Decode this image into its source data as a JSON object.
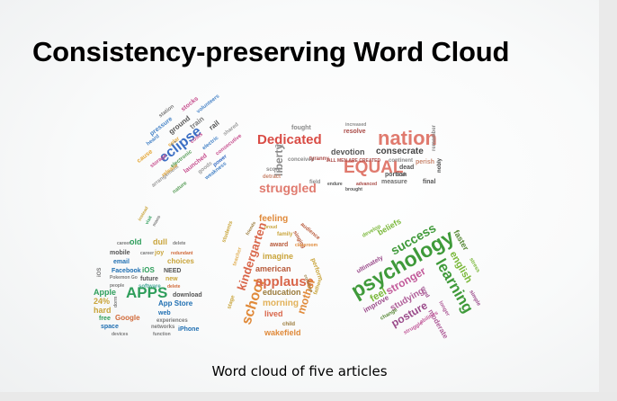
{
  "slide": {
    "title": "Consistency-preserving Word Cloud",
    "caption": "Word cloud of five articles"
  },
  "clouds": [
    {
      "id": "cloud-eclipse",
      "words": [
        "pressure",
        "eclipse",
        "cause",
        "arrangement",
        "ground",
        "train",
        "stocks",
        "volunteers",
        "launched",
        "release",
        "rail",
        "electric",
        "consecutive",
        "nature",
        "goods",
        "weakness",
        "storage",
        "station",
        "solar",
        "electronic",
        "shared",
        "heard",
        "costs",
        "power"
      ],
      "colors": [
        "#3b6fc4",
        "#e5a83a",
        "#9a9a9a",
        "#4a86c8",
        "#c74f8e",
        "#5a9e5a",
        "#7a7a7a"
      ]
    },
    {
      "id": "cloud-equal",
      "words": [
        "EQUAL",
        "nation",
        "Dedicated",
        "consecrate",
        "struggled",
        "devotion",
        "fought",
        "liberty",
        "measure",
        "ALL MEN ARE CREATED",
        "conceived",
        "continent",
        "resolve",
        "perish",
        "dead",
        "increased",
        "remember",
        "portion",
        "score",
        "final",
        "task",
        "brought",
        "endure",
        "advanced",
        "detract",
        "nobly",
        "field",
        "tyranny",
        "met"
      ],
      "colors": [
        "#e07a6e",
        "#d94c45",
        "#8a8a8a",
        "#6a6a6a",
        "#c9856c",
        "#a94a46"
      ]
    },
    {
      "id": "cloud-apps",
      "words": [
        "APPS",
        "Apple",
        "software",
        "App Store",
        "old",
        "dull",
        "mobile",
        "joy",
        "email",
        "choices",
        "Facebook",
        "iOS",
        "NEED",
        "Pokemon Go",
        "future",
        "new",
        "free",
        "Google",
        "web",
        "experiences",
        "space",
        "networks",
        "iPhone",
        "devices",
        "function",
        "54%",
        "24%",
        "hard",
        "dorm",
        "download",
        "people",
        "redundant",
        "delete",
        "instead",
        "visit",
        "mans",
        "career"
      ],
      "colors": [
        "#2e9e5b",
        "#c9a43a",
        "#1f6fb2",
        "#7a7a7a",
        "#d16a3a",
        "#4aa89a"
      ]
    },
    {
      "id": "cloud-applause",
      "words": [
        "applause",
        "kindergarten",
        "school",
        "feeling",
        "imagine",
        "american",
        "education",
        "morning",
        "lived",
        "wakefield",
        "mother",
        "perform",
        "award",
        "stage",
        "child",
        "teacher",
        "students",
        "father",
        "singing",
        "family",
        "friends",
        "proud",
        "classroom",
        "common",
        "audience"
      ],
      "colors": [
        "#e08a3a",
        "#d9664a",
        "#c9a43a",
        "#e2b25a",
        "#b85a3a",
        "#9a7a3a"
      ]
    },
    {
      "id": "cloud-psychology",
      "words": [
        "psychology",
        "learning",
        "success",
        "beliefs",
        "english",
        "faster",
        "stronger",
        "feel",
        "studying",
        "improve",
        "change",
        "posture",
        "ultimately",
        "develop",
        "moderate",
        "stress",
        "simple",
        "longer",
        "struggle",
        "abilities",
        "tired",
        "studies",
        "mindset",
        "growth"
      ],
      "colors": [
        "#3f9a3a",
        "#7ab83a",
        "#c25a9a",
        "#9a4a8a",
        "#5a8a3a",
        "#b0609a"
      ]
    }
  ]
}
